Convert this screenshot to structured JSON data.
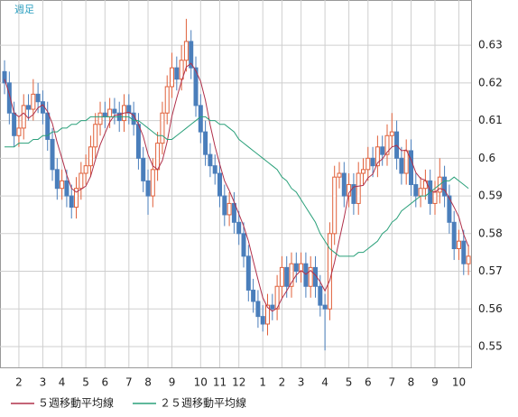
{
  "chart_data": {
    "type": "candlestick",
    "title": "週足",
    "x": [
      0,
      1,
      2,
      3,
      4,
      5,
      6,
      7,
      8,
      9,
      10,
      11,
      12,
      13,
      14,
      15,
      16,
      17,
      18,
      19,
      20,
      21,
      22,
      23,
      24,
      25,
      26,
      27,
      28,
      29,
      30,
      31,
      32,
      33,
      34,
      35,
      36,
      37,
      38,
      39,
      40,
      41,
      42,
      43,
      44,
      45,
      46,
      47,
      48,
      49,
      50,
      51,
      52,
      53,
      54,
      55,
      56,
      57,
      58,
      59,
      60,
      61,
      62,
      63,
      64,
      65,
      66,
      67,
      68,
      69,
      70,
      71,
      72,
      73,
      74,
      75,
      76,
      77,
      78,
      79,
      80,
      81,
      82,
      83,
      84,
      85,
      86,
      87,
      88,
      89,
      90,
      91,
      92,
      93,
      94,
      95,
      96,
      97
    ],
    "open": [
      0.623,
      0.62,
      0.612,
      0.606,
      0.608,
      0.614,
      0.613,
      0.617,
      0.615,
      0.612,
      0.605,
      0.597,
      0.592,
      0.594,
      0.59,
      0.587,
      0.592,
      0.596,
      0.598,
      0.603,
      0.609,
      0.612,
      0.611,
      0.613,
      0.612,
      0.61,
      0.614,
      0.612,
      0.609,
      0.6,
      0.594,
      0.59,
      0.597,
      0.604,
      0.612,
      0.619,
      0.624,
      0.621,
      0.626,
      0.631,
      0.624,
      0.614,
      0.607,
      0.601,
      0.598,
      0.596,
      0.59,
      0.585,
      0.588,
      0.583,
      0.58,
      0.574,
      0.565,
      0.562,
      0.558,
      0.556,
      0.561,
      0.56,
      0.566,
      0.571,
      0.566,
      0.572,
      0.57,
      0.572,
      0.566,
      0.571,
      0.566,
      0.561,
      0.56,
      0.58,
      0.595,
      0.596,
      0.59,
      0.593,
      0.588,
      0.596,
      0.597,
      0.6,
      0.598,
      0.603,
      0.601,
      0.606,
      0.607,
      0.6,
      0.596,
      0.602,
      0.593,
      0.59,
      0.592,
      0.594,
      0.588,
      0.591,
      0.595,
      0.59,
      0.583,
      0.576,
      0.578,
      0.572
    ],
    "high": [
      0.626,
      0.623,
      0.615,
      0.611,
      0.617,
      0.617,
      0.621,
      0.62,
      0.618,
      0.615,
      0.608,
      0.6,
      0.597,
      0.597,
      0.593,
      0.595,
      0.599,
      0.601,
      0.606,
      0.612,
      0.615,
      0.615,
      0.616,
      0.616,
      0.615,
      0.617,
      0.617,
      0.615,
      0.612,
      0.603,
      0.597,
      0.6,
      0.607,
      0.615,
      0.622,
      0.628,
      0.627,
      0.63,
      0.637,
      0.634,
      0.627,
      0.617,
      0.61,
      0.604,
      0.601,
      0.599,
      0.593,
      0.591,
      0.591,
      0.586,
      0.583,
      0.577,
      0.568,
      0.565,
      0.561,
      0.564,
      0.564,
      0.569,
      0.574,
      0.574,
      0.575,
      0.575,
      0.575,
      0.575,
      0.574,
      0.574,
      0.569,
      0.564,
      0.583,
      0.598,
      0.599,
      0.599,
      0.596,
      0.596,
      0.599,
      0.6,
      0.603,
      0.603,
      0.606,
      0.606,
      0.609,
      0.612,
      0.61,
      0.603,
      0.605,
      0.605,
      0.596,
      0.595,
      0.597,
      0.597,
      0.594,
      0.6,
      0.598,
      0.593,
      0.586,
      0.581,
      0.581,
      0.577
    ],
    "low": [
      0.617,
      0.609,
      0.603,
      0.603,
      0.605,
      0.61,
      0.61,
      0.612,
      0.609,
      0.602,
      0.594,
      0.589,
      0.589,
      0.587,
      0.584,
      0.584,
      0.589,
      0.593,
      0.595,
      0.6,
      0.606,
      0.608,
      0.608,
      0.609,
      0.607,
      0.607,
      0.609,
      0.606,
      0.597,
      0.591,
      0.585,
      0.587,
      0.594,
      0.601,
      0.609,
      0.616,
      0.618,
      0.618,
      0.623,
      0.621,
      0.611,
      0.604,
      0.598,
      0.595,
      0.593,
      0.587,
      0.582,
      0.582,
      0.58,
      0.577,
      0.571,
      0.562,
      0.559,
      0.555,
      0.554,
      0.553,
      0.557,
      0.557,
      0.563,
      0.563,
      0.563,
      0.567,
      0.567,
      0.563,
      0.563,
      0.563,
      0.558,
      0.549,
      0.557,
      0.577,
      0.592,
      0.587,
      0.587,
      0.585,
      0.585,
      0.593,
      0.594,
      0.595,
      0.595,
      0.598,
      0.598,
      0.603,
      0.597,
      0.593,
      0.593,
      0.59,
      0.587,
      0.587,
      0.589,
      0.585,
      0.585,
      0.588,
      0.587,
      0.58,
      0.573,
      0.573,
      0.569,
      0.569
    ],
    "close": [
      0.62,
      0.612,
      0.606,
      0.608,
      0.614,
      0.613,
      0.617,
      0.615,
      0.612,
      0.605,
      0.597,
      0.592,
      0.594,
      0.59,
      0.587,
      0.592,
      0.596,
      0.598,
      0.603,
      0.609,
      0.612,
      0.611,
      0.613,
      0.612,
      0.61,
      0.614,
      0.612,
      0.609,
      0.6,
      0.594,
      0.59,
      0.597,
      0.604,
      0.612,
      0.619,
      0.624,
      0.621,
      0.626,
      0.631,
      0.624,
      0.614,
      0.607,
      0.601,
      0.598,
      0.596,
      0.59,
      0.585,
      0.588,
      0.583,
      0.58,
      0.574,
      0.565,
      0.562,
      0.558,
      0.556,
      0.561,
      0.56,
      0.566,
      0.571,
      0.566,
      0.572,
      0.57,
      0.572,
      0.566,
      0.571,
      0.566,
      0.561,
      0.56,
      0.58,
      0.595,
      0.596,
      0.59,
      0.593,
      0.588,
      0.596,
      0.597,
      0.6,
      0.598,
      0.603,
      0.601,
      0.606,
      0.607,
      0.6,
      0.596,
      0.602,
      0.593,
      0.59,
      0.592,
      0.594,
      0.588,
      0.591,
      0.595,
      0.59,
      0.583,
      0.576,
      0.578,
      0.572,
      0.574
    ],
    "up_color": "#e0603a",
    "down_color": "#4a7ebb",
    "series": [
      {
        "name": "５週移動平均線",
        "color": "#b0304a",
        "values": [
          0.621,
          0.617,
          0.612,
          0.611,
          0.612,
          0.6106,
          0.6116,
          0.6134,
          0.6142,
          0.6124,
          0.6092,
          0.6042,
          0.6,
          0.5956,
          0.592,
          0.591,
          0.5918,
          0.5926,
          0.5952,
          0.5996,
          0.6036,
          0.6066,
          0.6096,
          0.6114,
          0.6116,
          0.612,
          0.6122,
          0.6114,
          0.609,
          0.6058,
          0.601,
          0.598,
          0.597,
          0.5994,
          0.6044,
          0.6112,
          0.616,
          0.6204,
          0.6242,
          0.6252,
          0.6232,
          0.6204,
          0.6154,
          0.6088,
          0.6032,
          0.5984,
          0.594,
          0.5914,
          0.5884,
          0.5852,
          0.582,
          0.578,
          0.5728,
          0.5678,
          0.563,
          0.5604,
          0.5594,
          0.5602,
          0.5628,
          0.5648,
          0.567,
          0.569,
          0.5702,
          0.5692,
          0.5702,
          0.569,
          0.5672,
          0.5648,
          0.5676,
          0.5724,
          0.5784,
          0.5842,
          0.5908,
          0.5924,
          0.5926,
          0.5928,
          0.5948,
          0.5958,
          0.5988,
          0.5998,
          0.6016,
          0.603,
          0.6034,
          0.602,
          0.6022,
          0.5996,
          0.5962,
          0.5946,
          0.5942,
          0.5914,
          0.591,
          0.592,
          0.5916,
          0.5894,
          0.587,
          0.5844,
          0.5798,
          0.5766
        ]
      },
      {
        "name": "２５週移動平均線",
        "color": "#2aa07a",
        "values": [
          0.603,
          0.603,
          0.603,
          0.604,
          0.604,
          0.604,
          0.605,
          0.605,
          0.606,
          0.606,
          0.607,
          0.607,
          0.608,
          0.608,
          0.609,
          0.609,
          0.61,
          0.61,
          0.611,
          0.611,
          0.611,
          0.611,
          0.611,
          0.611,
          0.611,
          0.611,
          0.611,
          0.61,
          0.61,
          0.609,
          0.608,
          0.607,
          0.606,
          0.606,
          0.605,
          0.605,
          0.606,
          0.607,
          0.608,
          0.609,
          0.61,
          0.611,
          0.611,
          0.61,
          0.61,
          0.609,
          0.609,
          0.608,
          0.607,
          0.605,
          0.604,
          0.603,
          0.602,
          0.601,
          0.6,
          0.599,
          0.598,
          0.597,
          0.595,
          0.594,
          0.592,
          0.591,
          0.589,
          0.587,
          0.585,
          0.583,
          0.58,
          0.578,
          0.576,
          0.575,
          0.574,
          0.574,
          0.574,
          0.574,
          0.575,
          0.575,
          0.576,
          0.577,
          0.578,
          0.58,
          0.581,
          0.583,
          0.584,
          0.586,
          0.587,
          0.588,
          0.589,
          0.59,
          0.59,
          0.591,
          0.592,
          0.593,
          0.594,
          0.594,
          0.595,
          0.594,
          0.593,
          0.592
        ]
      }
    ],
    "xlim": [
      -0.95,
      97.55
    ],
    "ylim": [
      0.5445,
      0.642
    ],
    "xticks": [
      {
        "value": 3,
        "label": "2"
      },
      {
        "value": 8,
        "label": "3"
      },
      {
        "value": 12,
        "label": "4"
      },
      {
        "value": 17,
        "label": "5"
      },
      {
        "value": 21,
        "label": "6"
      },
      {
        "value": 26,
        "label": "7"
      },
      {
        "value": 30,
        "label": "8"
      },
      {
        "value": 35,
        "label": "9"
      },
      {
        "value": 41,
        "label": "10"
      },
      {
        "value": 45,
        "label": "11"
      },
      {
        "value": 49,
        "label": "12"
      },
      {
        "value": 54,
        "label": "1"
      },
      {
        "value": 58,
        "label": "2"
      },
      {
        "value": 62,
        "label": "3"
      },
      {
        "value": 67,
        "label": "4"
      },
      {
        "value": 72,
        "label": "5"
      },
      {
        "value": 76,
        "label": "6"
      },
      {
        "value": 81,
        "label": "7"
      },
      {
        "value": 85,
        "label": "8"
      },
      {
        "value": 90,
        "label": "9"
      },
      {
        "value": 95,
        "label": "10"
      }
    ],
    "yticks": [
      0.55,
      0.56,
      0.57,
      0.58,
      0.59,
      0.6,
      0.61,
      0.62,
      0.63
    ],
    "grid": true
  }
}
